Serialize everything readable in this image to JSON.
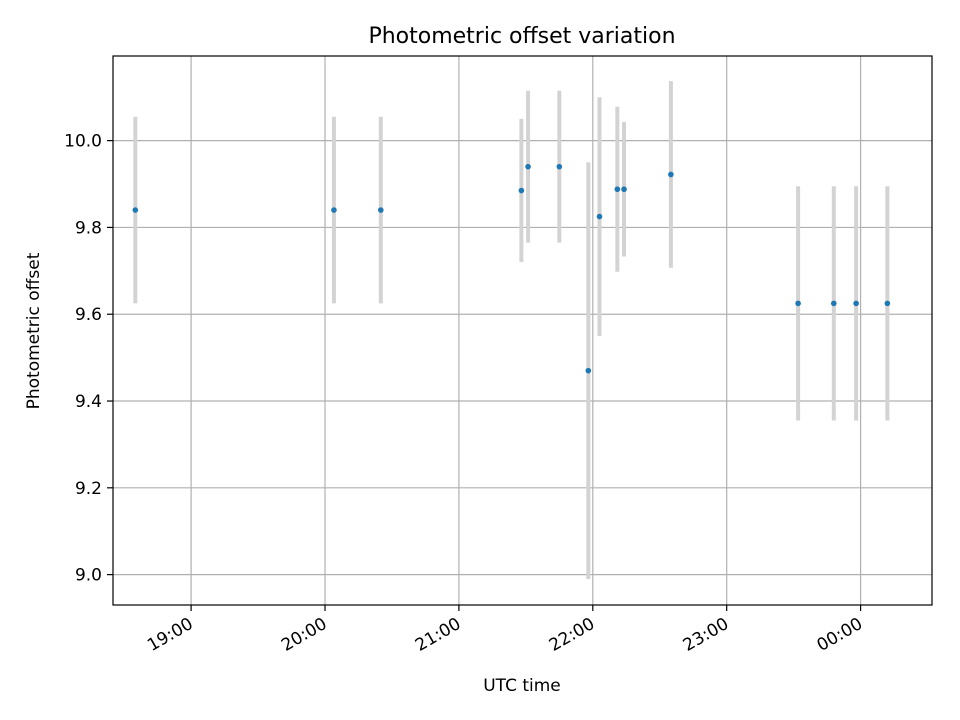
{
  "chart_data": {
    "type": "scatter",
    "title": "Photometric offset variation",
    "xlabel": "UTC time",
    "ylabel": "Photometric offset",
    "x_axis_type": "time",
    "xlim": [
      "18:25",
      "00:32"
    ],
    "ylim": [
      8.93,
      10.195
    ],
    "grid": true,
    "legend": "none",
    "x_ticks": [
      "19:00",
      "20:00",
      "21:00",
      "22:00",
      "23:00",
      "00:00"
    ],
    "y_ticks": [
      "9.0",
      "9.2",
      "9.4",
      "9.6",
      "9.8",
      "10.0"
    ],
    "colors": {
      "points": "#1f77b4",
      "errorbars": "#d3d3d3",
      "grid": "#b0b0b0"
    },
    "series": [
      {
        "points": [
          {
            "x": "18:35",
            "y": 9.84,
            "yerr": 0.215
          },
          {
            "x": "20:04",
            "y": 9.84,
            "yerr": 0.215
          },
          {
            "x": "20:25",
            "y": 9.84,
            "yerr": 0.215
          },
          {
            "x": "21:28",
            "y": 9.885,
            "yerr": 0.165
          },
          {
            "x": "21:31",
            "y": 9.94,
            "yerr": 0.175
          },
          {
            "x": "21:45",
            "y": 9.94,
            "yerr": 0.175
          },
          {
            "x": "21:58",
            "y": 9.47,
            "yerr": 0.48
          },
          {
            "x": "22:03",
            "y": 9.825,
            "yerr": 0.275
          },
          {
            "x": "22:11",
            "y": 9.888,
            "yerr": 0.19
          },
          {
            "x": "22:14",
            "y": 9.888,
            "yerr": 0.155
          },
          {
            "x": "22:35",
            "y": 9.922,
            "yerr": 0.215
          },
          {
            "x": "23:32",
            "y": 9.625,
            "yerr": 0.27
          },
          {
            "x": "23:48",
            "y": 9.625,
            "yerr": 0.27
          },
          {
            "x": "23:58",
            "y": 9.625,
            "yerr": 0.27
          },
          {
            "x": "00:12",
            "y": 9.625,
            "yerr": 0.27
          }
        ]
      }
    ]
  }
}
